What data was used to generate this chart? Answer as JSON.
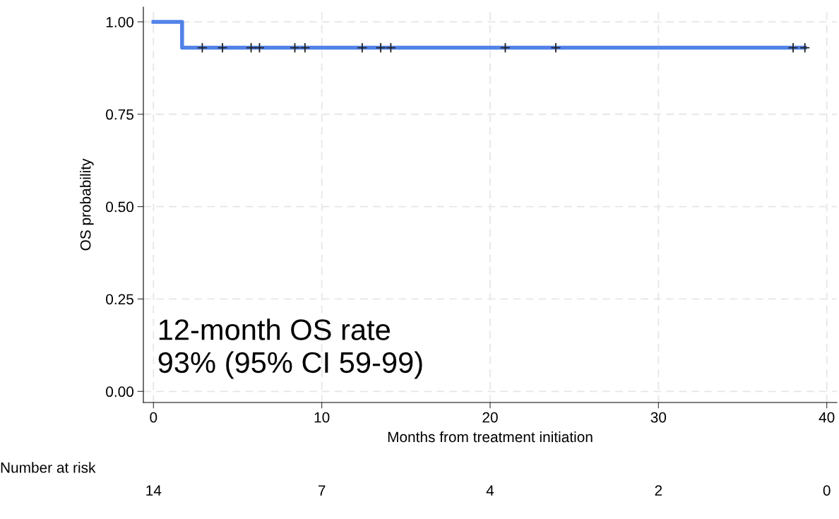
{
  "chart_data": {
    "type": "step",
    "xlabel": "Months from treatment initiation",
    "ylabel": "OS probability",
    "series": [
      {
        "color": "#5282e8",
        "x": [
          0,
          1.7,
          38.7
        ],
        "values": [
          1.0,
          0.93,
          0.93
        ]
      },
      {
        "type": "scatter",
        "marker": "cross",
        "color": "#222222",
        "x": [
          2.9,
          4.1,
          5.8,
          6.3,
          8.4,
          9.0,
          12.4,
          13.5,
          14.1,
          20.9,
          23.9,
          38.0,
          38.7
        ],
        "values": [
          0.93,
          0.93,
          0.93,
          0.93,
          0.93,
          0.93,
          0.93,
          0.93,
          0.93,
          0.93,
          0.93,
          0.93,
          0.93
        ]
      }
    ],
    "xlim": [
      -0.6,
      40.6
    ],
    "xticks": [
      0,
      10,
      20,
      30,
      40
    ],
    "ylim": [
      -0.03,
      1.04
    ],
    "yticks": [
      {
        "value": 0,
        "label": "0.00"
      },
      {
        "value": 0.25,
        "label": "0.25"
      },
      {
        "value": 0.5,
        "label": "0.50"
      },
      {
        "value": 0.75,
        "label": "0.75"
      },
      {
        "value": 1,
        "label": "1.00"
      }
    ],
    "grid": true,
    "annotations": [
      "12-month OS rate\n93% (95% CI 59-99)",
      "Number at risk",
      "14",
      "7",
      "4",
      "2",
      "0"
    ]
  }
}
